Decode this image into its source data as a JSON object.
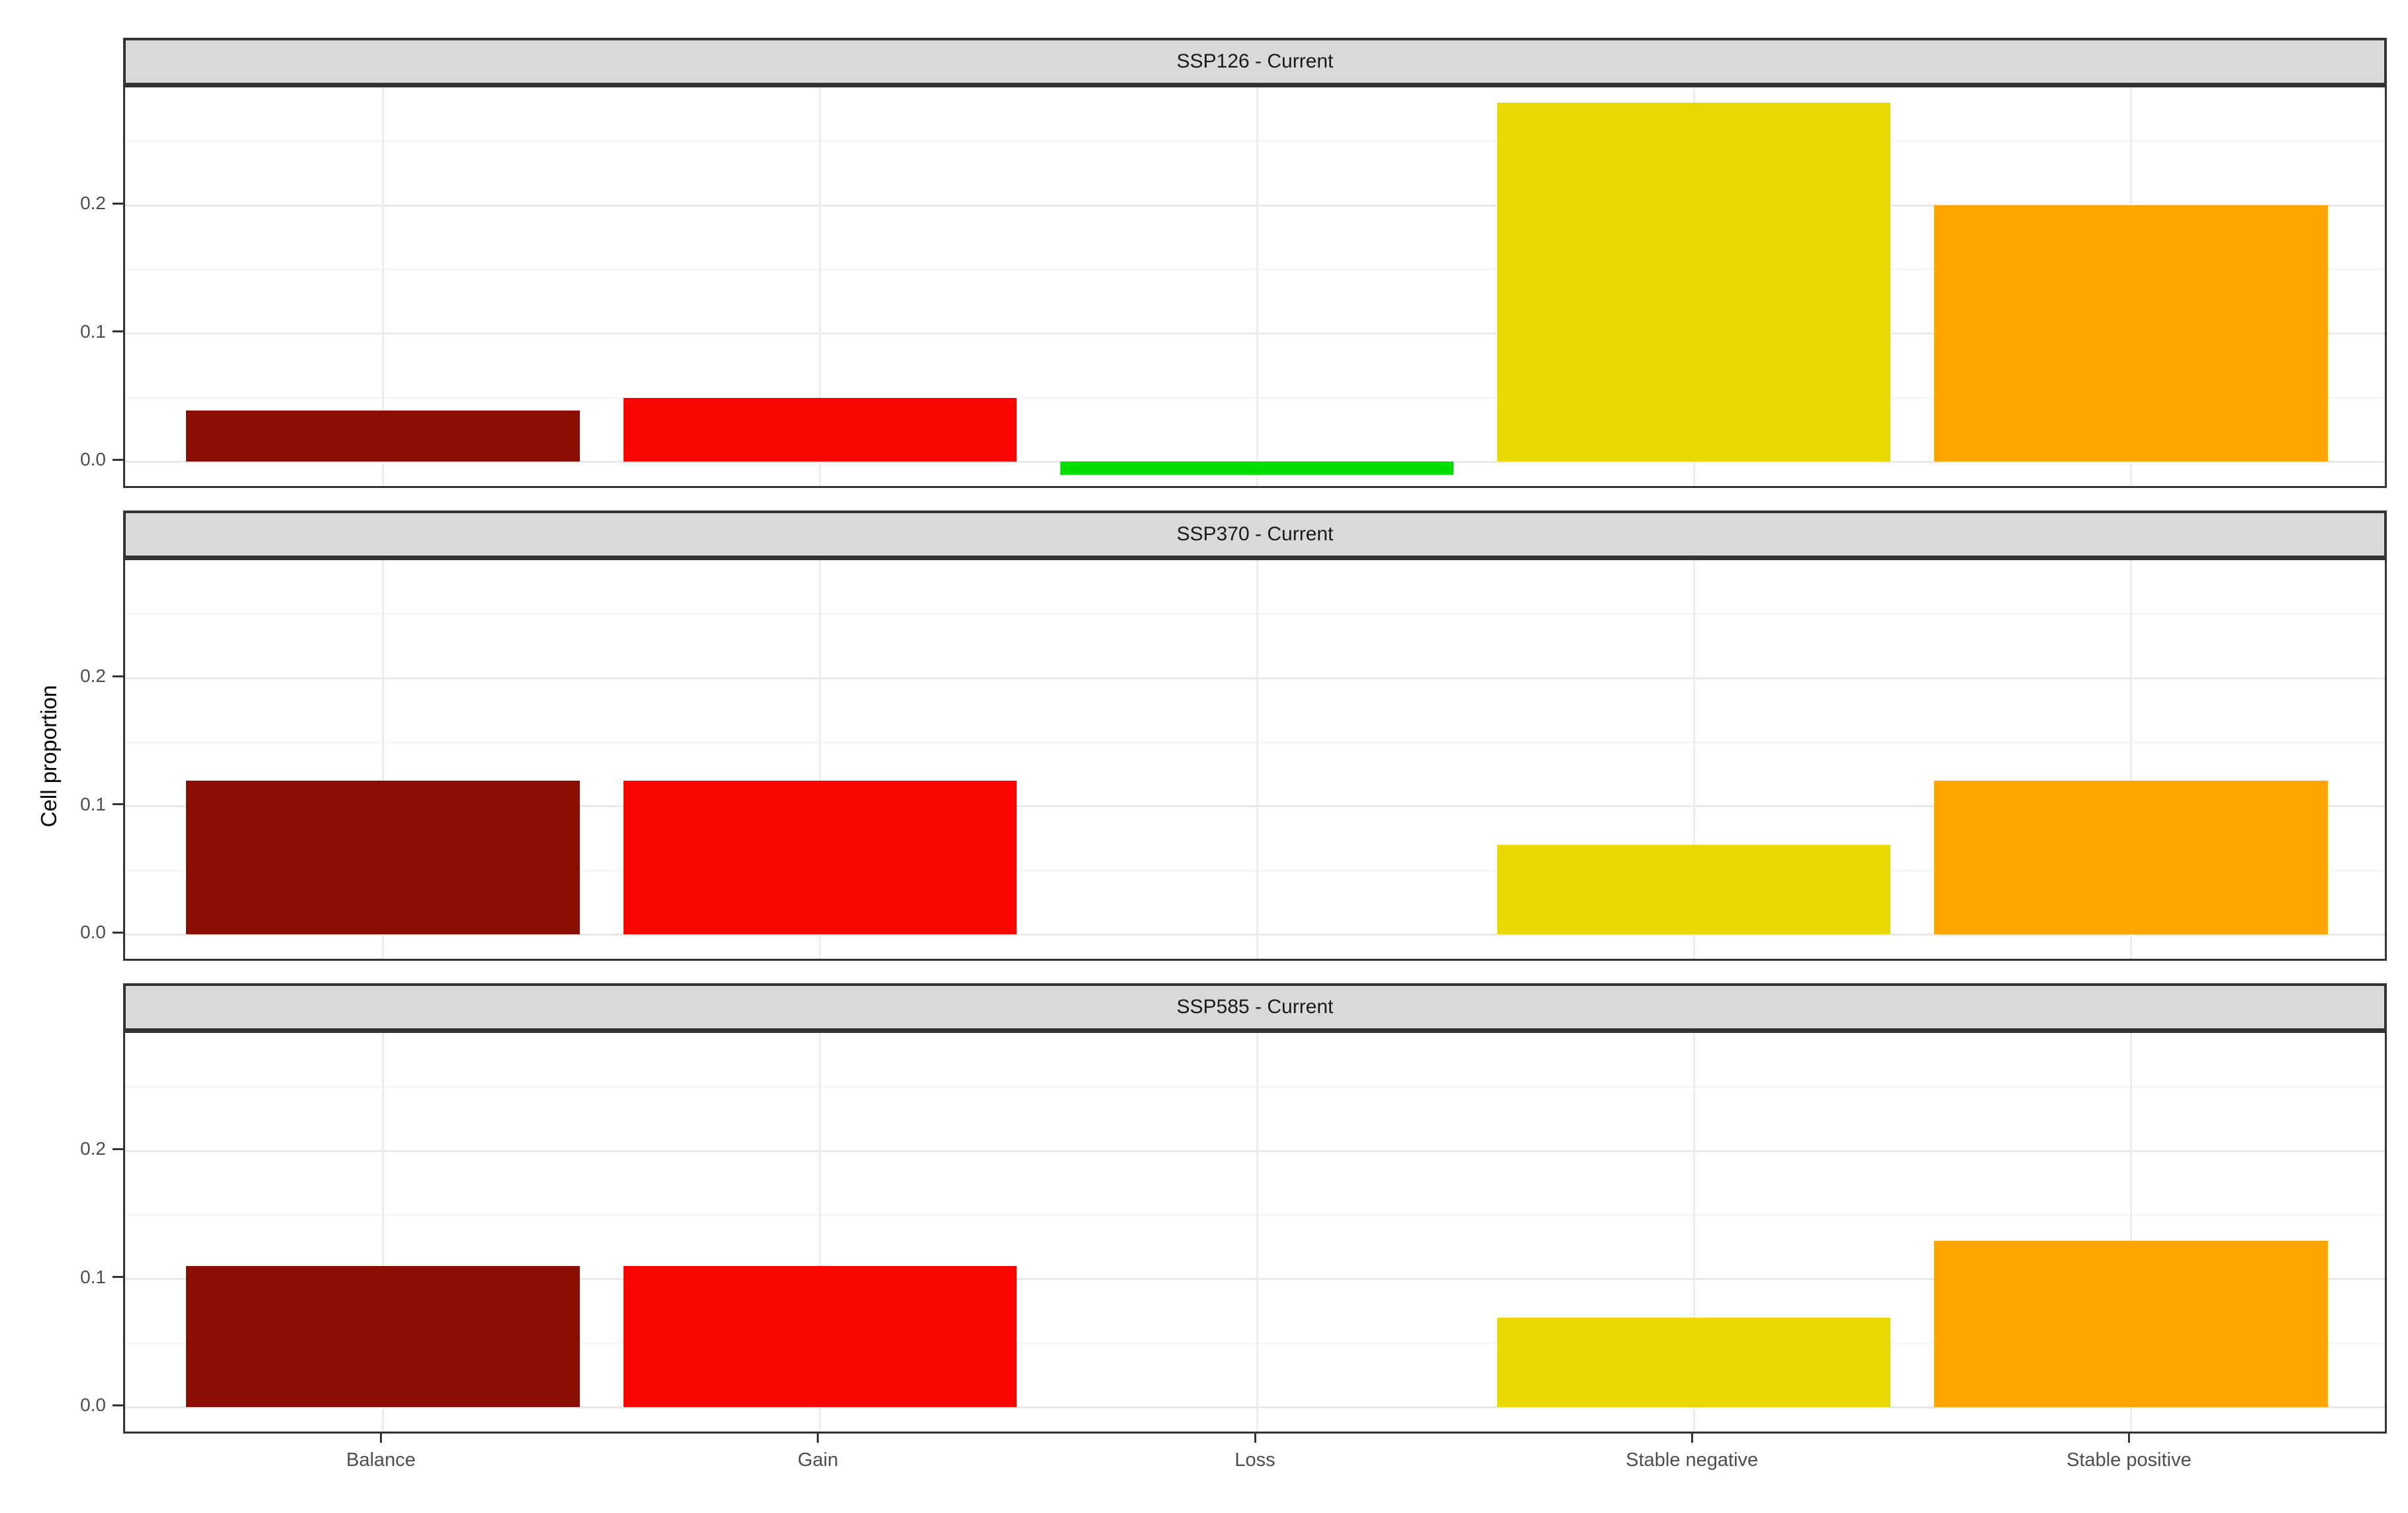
{
  "chart_data": {
    "type": "bar",
    "ylabel": "Cell proportion",
    "categories": [
      "Balance",
      "Gain",
      "Loss",
      "Stable negative",
      "Stable positive"
    ],
    "bar_colors": [
      "#8B0D02",
      "#FC0400",
      "#00DE00",
      "#E8D800",
      "#FFA500"
    ],
    "facets": [
      {
        "title": "SSP126 - Current",
        "values": [
          0.04,
          0.05,
          -0.01,
          0.28,
          0.2
        ]
      },
      {
        "title": "SSP370 - Current",
        "values": [
          0.12,
          0.12,
          0.0,
          0.07,
          0.12
        ]
      },
      {
        "title": "SSP585 - Current",
        "values": [
          0.11,
          0.11,
          0.0,
          0.07,
          0.13
        ]
      }
    ],
    "yticks": [
      {
        "label": "0.0",
        "value": 0.0
      },
      {
        "label": "0.1",
        "value": 0.1
      },
      {
        "label": "0.2",
        "value": 0.2
      }
    ],
    "yticks_minor": [
      0.05,
      0.15,
      0.25
    ],
    "ylim": [
      -0.022,
      0.292
    ],
    "grid": "on",
    "legend": "none"
  }
}
